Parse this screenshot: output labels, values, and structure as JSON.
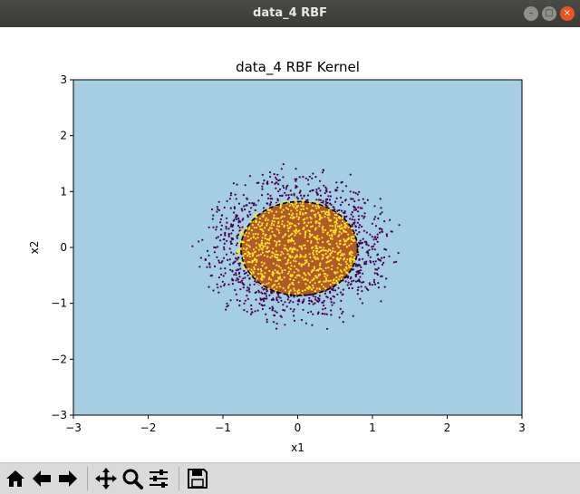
{
  "window": {
    "title": "data_4 RBF"
  },
  "chart_data": {
    "type": "scatter",
    "title": "data_4 RBF Kernel",
    "xlabel": "x1",
    "ylabel": "x2",
    "xlim": [
      -3,
      3
    ],
    "ylim": [
      -3,
      3
    ],
    "xticks": [
      "−3",
      "−2",
      "−1",
      "0",
      "1",
      "2",
      "3"
    ],
    "yticks": [
      "−3",
      "−2",
      "−1",
      "0",
      "1",
      "2",
      "3"
    ],
    "grid": false,
    "legend": "none",
    "decision_region": {
      "shape": "ellipse",
      "center": [
        0.02,
        -0.02
      ],
      "radius_x": 0.78,
      "radius_y": 0.84
    },
    "series": [
      {
        "class": "outer",
        "color": "#440154",
        "count": 800,
        "r_range": [
          0.85,
          1.55
        ]
      },
      {
        "class": "inner",
        "color": "#fde725",
        "count": 900,
        "r_range": [
          0,
          0.85
        ]
      }
    ],
    "colors": {
      "background_region": "#a6cee3",
      "inner_region": "#b15928",
      "boundary": "#000000"
    }
  },
  "toolbar": {
    "buttons": [
      {
        "name": "home-button",
        "icon": "home-icon"
      },
      {
        "name": "back-button",
        "icon": "arrow-left-icon"
      },
      {
        "name": "forward-button",
        "icon": "arrow-right-icon"
      },
      {
        "name": "pan-button",
        "icon": "move-icon"
      },
      {
        "name": "zoom-button",
        "icon": "magnifier-icon"
      },
      {
        "name": "configure-subplots-button",
        "icon": "sliders-icon"
      },
      {
        "name": "save-button",
        "icon": "floppy-icon"
      }
    ]
  }
}
